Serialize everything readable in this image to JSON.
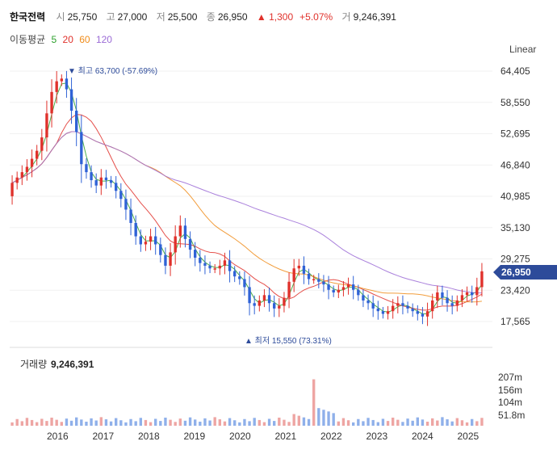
{
  "header": {
    "name": "한국전력",
    "open_label": "시",
    "open": "25,750",
    "high_label": "고",
    "high": "27,000",
    "low_label": "저",
    "low": "25,500",
    "close_label": "종",
    "close": "26,950",
    "change": "▲ 1,300",
    "change_pct": "+5.07%",
    "volume_label": "거",
    "volume": "9,246,391"
  },
  "ma_legend": {
    "label": "이동평균",
    "items": [
      {
        "period": "5",
        "color": "#2ca02c"
      },
      {
        "period": "20",
        "color": "#e0312b"
      },
      {
        "period": "60",
        "color": "#f08c1a"
      },
      {
        "period": "120",
        "color": "#9b6bd6"
      }
    ]
  },
  "scale_toggle": "Linear",
  "colors": {
    "up": "#e0312b",
    "down": "#2f62d6",
    "up_vol": "#eea5a3",
    "down_vol": "#8fb0ea",
    "price_badge": "#2d4b9a"
  },
  "price_axis": {
    "ticks": [
      "64,405",
      "58,550",
      "52,695",
      "46,840",
      "40,985",
      "35,130",
      "29,275",
      "23,420",
      "17,565"
    ]
  },
  "current_price_label": "26,950",
  "max_annotation": "▼ 최고 63,700 (-57.69%)",
  "min_annotation": "▲ 최저 15,550 (73.31%)",
  "volume_panel": {
    "title": "거래량",
    "value": "9,246,391",
    "ticks": [
      "207m",
      "156m",
      "104m",
      "51.8m"
    ]
  },
  "chart_data": {
    "type": "candlestick",
    "interval": "monthly",
    "y_ticks": [
      64405,
      58550,
      52695,
      46840,
      40985,
      35130,
      29275,
      23420,
      17565
    ],
    "x_labels": [
      "2016",
      "2017",
      "2018",
      "2019",
      "2020",
      "2021",
      "2022",
      "2023",
      "2024",
      "2025"
    ],
    "last_close": 26950,
    "period_high": 63700,
    "period_low": 15550,
    "close_series_approx": [
      43500,
      44500,
      45500,
      46500,
      48000,
      49500,
      52000,
      56500,
      60500,
      62500,
      63000,
      61000,
      57000,
      53000,
      47000,
      45500,
      44000,
      43000,
      44500,
      44000,
      43500,
      42000,
      40500,
      38500,
      36000,
      33500,
      32000,
      32500,
      33500,
      32000,
      30000,
      28000,
      30500,
      33500,
      35500,
      33000,
      31000,
      29500,
      28500,
      28000,
      27500,
      27500,
      28000,
      29000,
      27000,
      26000,
      25500,
      24000,
      21000,
      20500,
      21500,
      22500,
      21000,
      20000,
      20500,
      22000,
      25000,
      27500,
      28000,
      26500,
      25500,
      25500,
      25000,
      24500,
      23500,
      23000,
      23500,
      24000,
      24500,
      23500,
      22500,
      21500,
      21000,
      20000,
      19500,
      19000,
      19500,
      20500,
      21000,
      20500,
      20000,
      19500,
      19000,
      18500,
      19500,
      21500,
      23000,
      22000,
      21000,
      20500,
      21500,
      22500,
      23000,
      22500,
      24000,
      26950
    ],
    "volume_labels_max": "207m"
  }
}
